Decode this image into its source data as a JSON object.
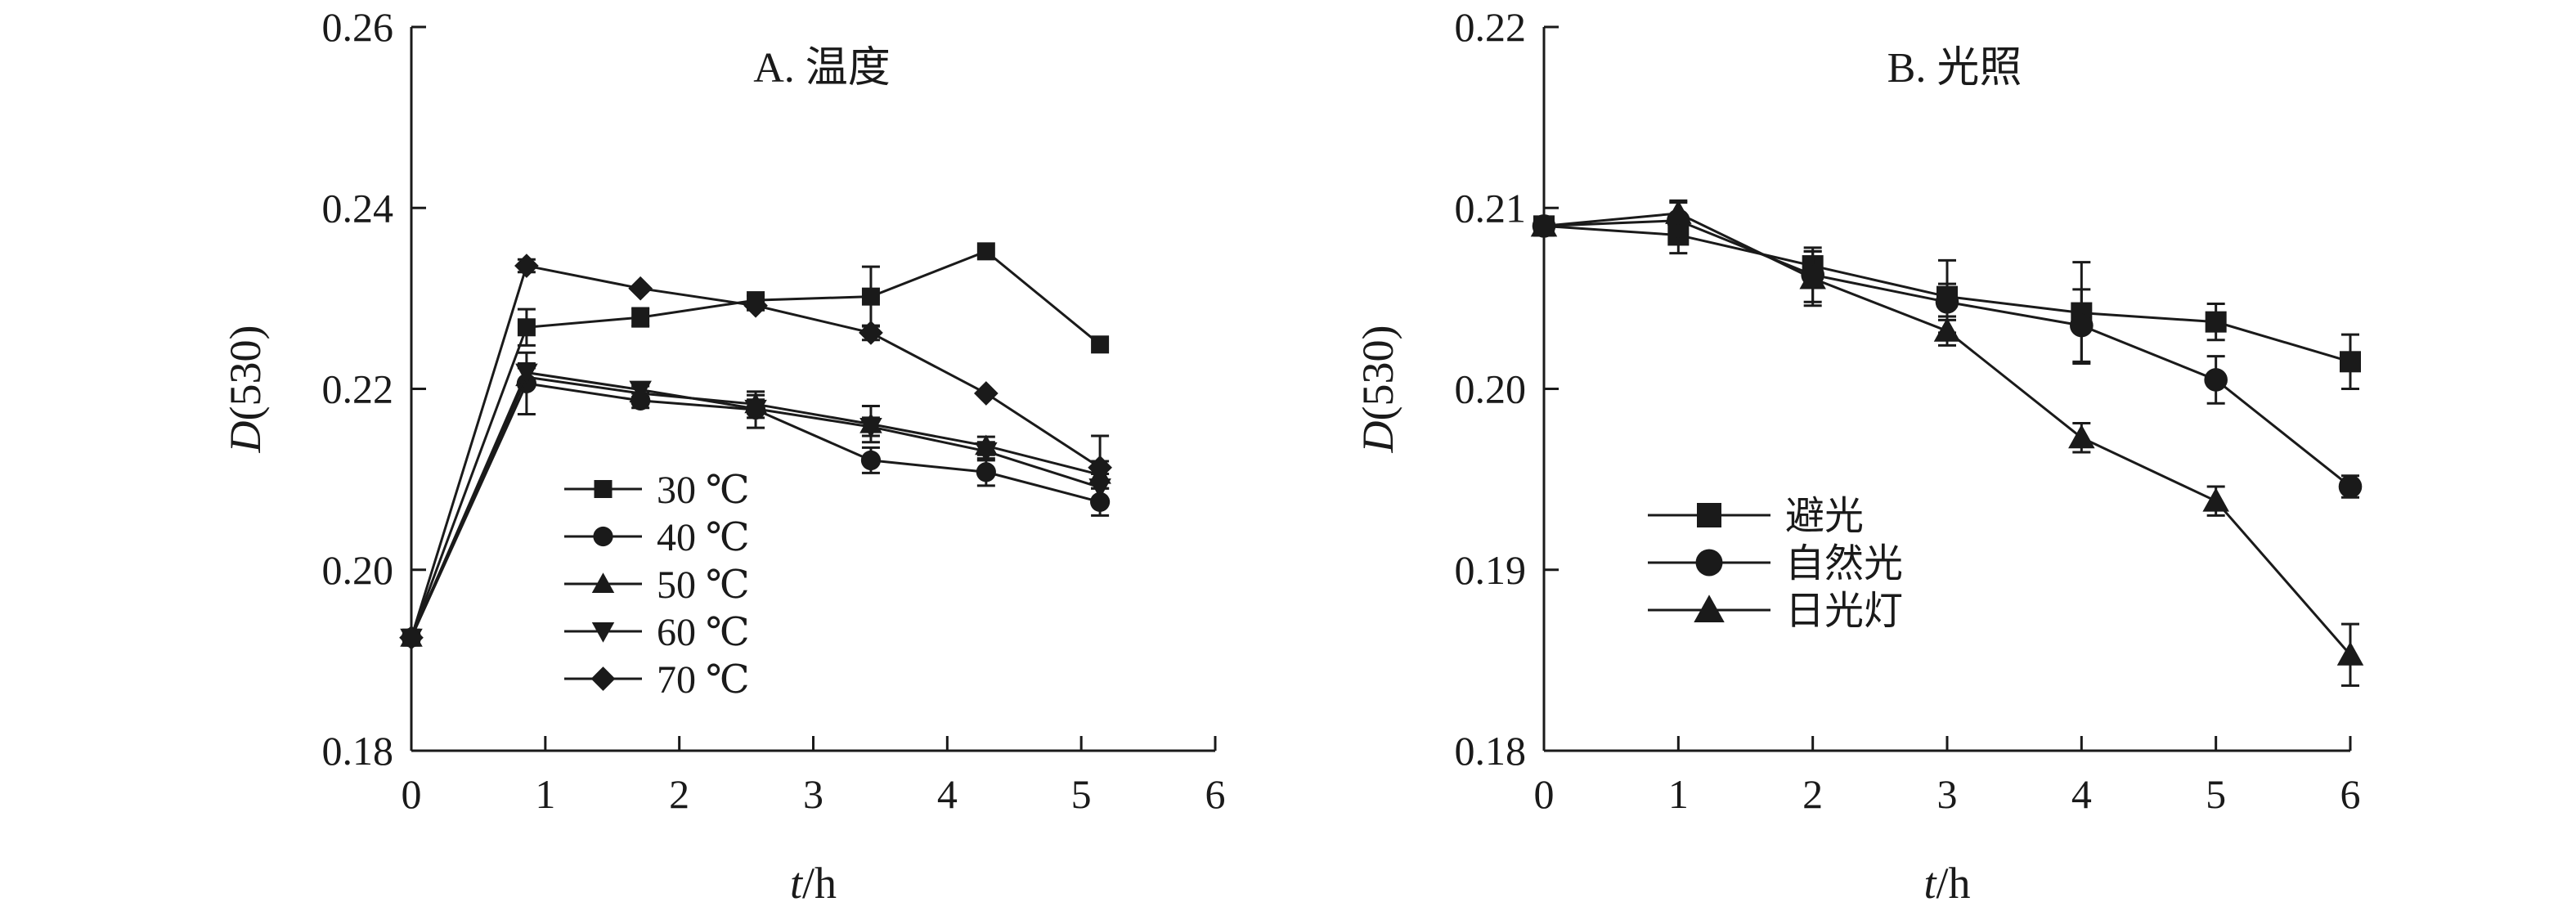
{
  "chart_data": [
    {
      "type": "line",
      "title": "A. 温度",
      "xlabel_italic": "t",
      "xlabel_rest": "/h",
      "ylabel_italic": "D",
      "ylabel_rest": "(530)",
      "xlim": [
        0,
        6
      ],
      "ylim": [
        0.18,
        0.26
      ],
      "xticks": [
        0,
        1,
        2,
        3,
        4,
        5,
        6
      ],
      "yticks": [
        0.18,
        0.2,
        0.22,
        0.24,
        0.26
      ],
      "ytick_labels": [
        "0.18",
        "0.20",
        "0.22",
        "0.24",
        "0.26"
      ],
      "grid": false,
      "legend_position": "lower-left inside",
      "series": [
        {
          "name": "30 ℃",
          "marker": "square",
          "x": [
            0,
            0.86,
            1.71,
            2.57,
            3.43,
            4.29,
            5.14
          ],
          "y": [
            0.1925,
            0.2268,
            0.2279,
            0.2298,
            0.2302,
            0.2352,
            0.2249
          ],
          "err": [
            0,
            0.002,
            0.001,
            0.0005,
            0.0033,
            0,
            0
          ]
        },
        {
          "name": "40 ℃",
          "marker": "circle",
          "x": [
            0,
            0.86,
            1.71,
            2.57,
            3.43,
            4.29,
            5.14
          ],
          "y": [
            0.1925,
            0.2206,
            0.2187,
            0.2177,
            0.2121,
            0.2108,
            0.2075
          ],
          "err": [
            0,
            0.0034,
            0.0008,
            0.002,
            0.0014,
            0.0015,
            0.0015
          ]
        },
        {
          "name": "50 ℃",
          "marker": "triangle-up",
          "x": [
            0,
            0.86,
            1.71,
            2.57,
            3.43,
            4.29,
            5.14
          ],
          "y": [
            0.1925,
            0.2213,
            0.2195,
            0.2183,
            0.2161,
            0.2137,
            0.2105
          ],
          "err": [
            0,
            0.001,
            0.0008,
            0.001,
            0.002,
            0.001,
            0.0015
          ]
        },
        {
          "name": "60 ℃",
          "marker": "triangle-down",
          "x": [
            0,
            0.86,
            1.71,
            2.57,
            3.43,
            4.29,
            5.14
          ],
          "y": [
            0.1925,
            0.2218,
            0.2199,
            0.2178,
            0.2158,
            0.2131,
            0.2091
          ],
          "err": [
            0,
            0.001,
            0.0008,
            0.001,
            0.001,
            0.001,
            0.0015
          ]
        },
        {
          "name": "70 ℃",
          "marker": "diamond",
          "x": [
            0,
            0.86,
            1.71,
            2.57,
            3.43,
            4.29,
            5.14
          ],
          "y": [
            0.1925,
            0.2336,
            0.2311,
            0.2292,
            0.2262,
            0.2195,
            0.2113
          ],
          "err": [
            0,
            0.0007,
            0,
            0.0005,
            0.0008,
            0,
            0.0035
          ]
        }
      ]
    },
    {
      "type": "line",
      "title": "B. 光照",
      "xlabel_italic": "t",
      "xlabel_rest": "/h",
      "ylabel_italic": "D",
      "ylabel_rest": "(530)",
      "xlim": [
        0,
        6
      ],
      "ylim": [
        0.18,
        0.22
      ],
      "xticks": [
        0,
        1,
        2,
        3,
        4,
        5,
        6
      ],
      "yticks": [
        0.18,
        0.19,
        0.2,
        0.21,
        0.22
      ],
      "ytick_labels": [
        "0.18",
        "0.19",
        "0.20",
        "0.21",
        "0.22"
      ],
      "grid": false,
      "legend_position": "lower-left inside",
      "series": [
        {
          "name": "避光",
          "marker": "square",
          "x": [
            0,
            1,
            2,
            3,
            4,
            5,
            6
          ],
          "y": [
            0.209,
            0.2085,
            0.2068,
            0.2051,
            0.2042,
            0.2037,
            0.2015
          ],
          "err": [
            0,
            0.001,
            0.0008,
            0.002,
            0.0028,
            0.001,
            0.0015
          ]
        },
        {
          "name": "自然光",
          "marker": "circle",
          "x": [
            0,
            1,
            2,
            3,
            4,
            5,
            6
          ],
          "y": [
            0.209,
            0.2093,
            0.2063,
            0.2048,
            0.2035,
            0.2005,
            0.1946
          ],
          "err": [
            0,
            0.001,
            0.0015,
            0.001,
            0.002,
            0.0013,
            0.0006
          ]
        },
        {
          "name": "日光灯",
          "marker": "triangle-up",
          "x": [
            0,
            1,
            2,
            3,
            4,
            5,
            6
          ],
          "y": [
            0.209,
            0.2097,
            0.2061,
            0.2032,
            0.1973,
            0.1938,
            0.1853
          ],
          "err": [
            0,
            0.0007,
            0.0015,
            0.0008,
            0.0008,
            0.0008,
            0.0017
          ]
        }
      ]
    }
  ]
}
